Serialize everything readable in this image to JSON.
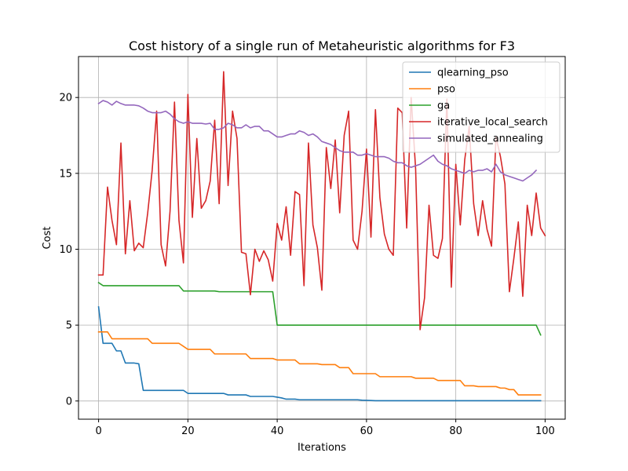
{
  "chart_data": {
    "type": "line",
    "title": "Cost history of a single run of Metaheuristic algorithms for F3",
    "xlabel": "Iterations",
    "ylabel": "Cost",
    "xlim": [
      -4.5,
      104.5
    ],
    "ylim": [
      -1.2,
      22.7
    ],
    "xticks": [
      0,
      20,
      40,
      60,
      80,
      100
    ],
    "yticks": [
      0,
      5,
      10,
      15,
      20
    ],
    "grid": true,
    "legend_position": "top-right",
    "series": [
      {
        "name": "qlearning_pso",
        "color": "#1f77b4",
        "x": [
          0,
          1,
          3,
          4,
          5,
          6,
          8,
          9,
          10,
          18,
          19,
          20,
          28,
          29,
          33,
          34,
          39,
          40,
          41,
          42,
          44,
          45,
          58,
          59,
          61,
          62,
          99
        ],
        "y": [
          6.2,
          3.8,
          3.8,
          3.3,
          3.3,
          2.5,
          2.5,
          2.45,
          0.7,
          0.7,
          0.7,
          0.5,
          0.5,
          0.4,
          0.4,
          0.3,
          0.3,
          0.25,
          0.2,
          0.12,
          0.12,
          0.08,
          0.08,
          0.05,
          0.03,
          0.02,
          0.02
        ]
      },
      {
        "name": "pso",
        "color": "#ff7f0e",
        "x": [
          0,
          2,
          3,
          11,
          12,
          18,
          19,
          20,
          25,
          26,
          33,
          34,
          39,
          40,
          44,
          45,
          49,
          50,
          53,
          54,
          56,
          57,
          62,
          63,
          70,
          71,
          75,
          76,
          81,
          82,
          84,
          85,
          89,
          90,
          91,
          92,
          93,
          94,
          99
        ],
        "y": [
          4.55,
          4.55,
          4.1,
          4.1,
          3.8,
          3.8,
          3.6,
          3.4,
          3.4,
          3.1,
          3.1,
          2.8,
          2.8,
          2.7,
          2.7,
          2.45,
          2.45,
          2.4,
          2.4,
          2.2,
          2.2,
          1.8,
          1.8,
          1.6,
          1.6,
          1.5,
          1.5,
          1.35,
          1.35,
          1.0,
          1.0,
          0.95,
          0.95,
          0.85,
          0.85,
          0.75,
          0.75,
          0.4,
          0.4
        ]
      },
      {
        "name": "ga",
        "color": "#2ca02c",
        "x": [
          0,
          1,
          18,
          19,
          26,
          27,
          39,
          40,
          98,
          99
        ],
        "y": [
          7.8,
          7.6,
          7.6,
          7.25,
          7.25,
          7.2,
          7.2,
          5.0,
          5.0,
          4.35
        ]
      },
      {
        "name": "iterative_local_search",
        "color": "#d62728",
        "x": [
          0,
          1,
          2,
          3,
          4,
          5,
          6,
          7,
          8,
          9,
          10,
          11,
          12,
          13,
          14,
          15,
          16,
          17,
          18,
          19,
          20,
          21,
          22,
          23,
          24,
          25,
          26,
          27,
          28,
          29,
          30,
          31,
          32,
          33,
          34,
          35,
          36,
          37,
          38,
          39,
          40,
          41,
          42,
          43,
          44,
          45,
          46,
          47,
          48,
          49,
          50,
          51,
          52,
          53,
          54,
          55,
          56,
          57,
          58,
          59,
          60,
          61,
          62,
          63,
          64,
          65,
          66,
          67,
          68,
          69,
          70,
          71,
          72,
          73,
          74,
          75,
          76,
          77,
          78,
          79,
          80,
          81,
          82,
          83,
          84,
          85,
          86,
          87,
          88,
          89,
          90,
          91,
          92,
          93,
          94,
          95,
          96,
          97,
          98,
          99,
          100
        ],
        "y": [
          8.3,
          8.3,
          14.1,
          11.9,
          10.3,
          17.0,
          9.7,
          13.2,
          9.9,
          10.4,
          10.1,
          12.4,
          15.2,
          19.1,
          10.3,
          8.9,
          12.5,
          19.7,
          11.9,
          9.1,
          20.2,
          12.1,
          17.3,
          12.7,
          13.2,
          14.5,
          18.5,
          13.0,
          21.7,
          14.2,
          19.1,
          17.3,
          9.8,
          9.7,
          7.0,
          10.0,
          9.2,
          9.9,
          9.3,
          7.9,
          11.7,
          10.6,
          12.8,
          9.6,
          13.8,
          13.6,
          7.6,
          17.0,
          11.6,
          10.1,
          7.3,
          16.7,
          14.0,
          17.2,
          12.4,
          17.5,
          19.1,
          10.6,
          10.0,
          12.5,
          16.6,
          10.8,
          19.2,
          13.4,
          11.0,
          10.0,
          9.6,
          19.3,
          19.0,
          11.4,
          20.0,
          15.3,
          4.7,
          6.8,
          12.9,
          9.6,
          9.4,
          10.7,
          19.9,
          7.5,
          15.6,
          11.6,
          15.9,
          18.1,
          13.0,
          10.9,
          13.2,
          11.3,
          10.2,
          17.4,
          16.1,
          14.3,
          7.2,
          9.4,
          11.8,
          6.9,
          12.9,
          10.9,
          13.7,
          11.4,
          10.9
        ]
      },
      {
        "name": "simulated_annealing",
        "color": "#9467bd",
        "x": [
          0,
          1,
          2,
          3,
          4,
          5,
          6,
          7,
          8,
          9,
          10,
          11,
          12,
          13,
          14,
          15,
          16,
          17,
          18,
          19,
          20,
          21,
          22,
          23,
          24,
          25,
          26,
          27,
          28,
          29,
          30,
          31,
          32,
          33,
          34,
          35,
          36,
          37,
          38,
          39,
          40,
          41,
          42,
          43,
          44,
          45,
          46,
          47,
          48,
          49,
          50,
          51,
          52,
          53,
          54,
          55,
          56,
          57,
          58,
          59,
          60,
          61,
          62,
          63,
          64,
          65,
          66,
          67,
          68,
          69,
          70,
          71,
          72,
          73,
          74,
          75,
          76,
          77,
          78,
          79,
          80,
          81,
          82,
          83,
          84,
          85,
          86,
          87,
          88,
          89,
          90,
          91,
          92,
          93,
          94,
          95,
          96,
          97,
          98
        ],
        "y": [
          19.6,
          19.8,
          19.7,
          19.5,
          19.75,
          19.6,
          19.5,
          19.5,
          19.5,
          19.45,
          19.3,
          19.1,
          19.0,
          19.0,
          19.0,
          19.1,
          18.9,
          18.6,
          18.4,
          18.3,
          18.4,
          18.3,
          18.3,
          18.3,
          18.25,
          18.3,
          17.9,
          17.9,
          18.0,
          18.3,
          18.2,
          18.0,
          18.0,
          18.2,
          18.0,
          18.1,
          18.1,
          17.8,
          17.8,
          17.6,
          17.4,
          17.4,
          17.5,
          17.6,
          17.6,
          17.8,
          17.7,
          17.5,
          17.6,
          17.4,
          17.1,
          17.0,
          16.9,
          16.7,
          16.5,
          16.4,
          16.4,
          16.4,
          16.2,
          16.2,
          16.3,
          16.2,
          16.1,
          16.1,
          16.1,
          16.0,
          15.8,
          15.7,
          15.7,
          15.5,
          15.4,
          15.5,
          15.6,
          15.8,
          16.0,
          16.2,
          15.8,
          15.6,
          15.5,
          15.3,
          15.2,
          15.1,
          15.0,
          15.2,
          15.1,
          15.2,
          15.2,
          15.3,
          15.1,
          15.6,
          15.1,
          14.9,
          14.8,
          14.7,
          14.6,
          14.5,
          14.7,
          14.9,
          15.2
        ]
      }
    ]
  }
}
